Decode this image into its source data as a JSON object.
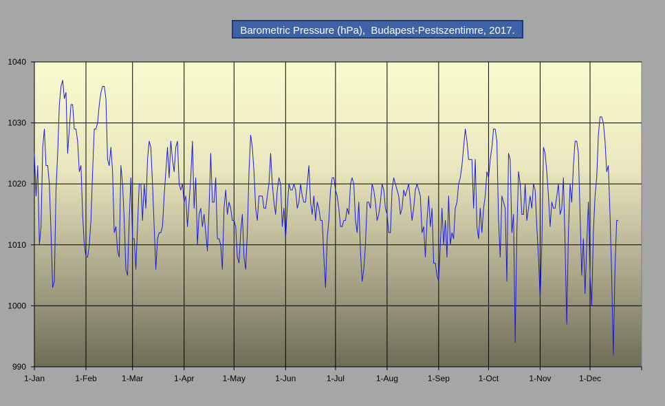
{
  "chart_data": {
    "type": "line",
    "title": "Barometric Pressure (hPa),  Budapest-Pestszentimre, 2017.",
    "xlabel": "",
    "ylabel": "",
    "ylim": [
      990,
      1040
    ],
    "yticks": [
      "990",
      "1000",
      "1010",
      "1020",
      "1030",
      "1040"
    ],
    "xticks": [
      "1-Jan",
      "1-Feb",
      "1-Mar",
      "1-Apr",
      "1-May",
      "1-Jun",
      "1-Jul",
      "1-Aug",
      "1-Sep",
      "1-Oct",
      "1-Nov",
      "1-Dec"
    ],
    "xtick_days": [
      0,
      31,
      59,
      90,
      120,
      151,
      181,
      212,
      243,
      273,
      304,
      334
    ],
    "x_days_total": 365,
    "grid": true,
    "line_color": "#1a1adb",
    "series": [
      {
        "values": [
          1025,
          1018,
          1023,
          1010,
          1013,
          1026,
          1029,
          1023,
          1023,
          1020,
          1012,
          1003,
          1004,
          1019,
          1025,
          1033,
          1036,
          1037,
          1034,
          1035,
          1025,
          1029,
          1033,
          1033,
          1029,
          1029,
          1027,
          1022,
          1023,
          1015,
          1010,
          1008,
          1008,
          1010,
          1014,
          1022,
          1029,
          1029,
          1030,
          1033,
          1035,
          1036,
          1036,
          1034,
          1024,
          1023,
          1026,
          1022,
          1012,
          1013,
          1009,
          1008,
          1023,
          1020,
          1014,
          1006,
          1005,
          1014,
          1021,
          1011,
          1011,
          1006,
          1013,
          1020,
          1020,
          1014,
          1020,
          1016,
          1024,
          1027,
          1026,
          1020,
          1013,
          1006,
          1011,
          1012,
          1012,
          1013,
          1018,
          1022,
          1026,
          1021,
          1027,
          1024,
          1022,
          1026,
          1027,
          1020,
          1019,
          1020,
          1017,
          1018,
          1013,
          1017,
          1021,
          1027,
          1016,
          1021,
          1010,
          1015,
          1016,
          1013,
          1015,
          1012,
          1009,
          1016,
          1025,
          1017,
          1017,
          1021,
          1011,
          1011,
          1010,
          1006,
          1016,
          1019,
          1015,
          1017,
          1016,
          1014,
          1014,
          1013,
          1008,
          1007,
          1012,
          1015,
          1008,
          1006,
          1012,
          1022,
          1028,
          1026,
          1022,
          1016,
          1014,
          1018,
          1018,
          1018,
          1016,
          1016,
          1018,
          1020,
          1025,
          1020,
          1017,
          1015,
          1019,
          1021,
          1020,
          1013,
          1016,
          1011,
          1016,
          1020,
          1019,
          1019,
          1020,
          1019,
          1016,
          1017,
          1020,
          1018,
          1017,
          1017,
          1020,
          1023,
          1017,
          1015,
          1018,
          1014,
          1017,
          1016,
          1014,
          1014,
          1008,
          1003,
          1011,
          1014,
          1019,
          1021,
          1021,
          1019,
          1018,
          1016,
          1013,
          1013,
          1014,
          1014,
          1016,
          1015,
          1020,
          1021,
          1020,
          1014,
          1012,
          1017,
          1009,
          1004,
          1006,
          1010,
          1017,
          1017,
          1016,
          1020,
          1019,
          1017,
          1014,
          1015,
          1017,
          1020,
          1019,
          1016,
          1015,
          1012,
          1012,
          1019,
          1021,
          1020,
          1019,
          1018,
          1015,
          1016,
          1019,
          1018,
          1019,
          1020,
          1017,
          1014,
          1016,
          1019,
          1020,
          1019,
          1018,
          1012,
          1013,
          1008,
          1014,
          1018,
          1013,
          1016,
          1007,
          1007,
          1005,
          1004,
          1010,
          1016,
          1010,
          1014,
          1008,
          1018,
          1010,
          1012,
          1011,
          1016,
          1017,
          1020,
          1021,
          1023,
          1026,
          1029,
          1027,
          1024,
          1024,
          1024,
          1016,
          1024,
          1013,
          1011,
          1016,
          1012,
          1016,
          1018,
          1022,
          1021,
          1024,
          1026,
          1029,
          1029,
          1027,
          1014,
          1008,
          1018,
          1017,
          1016,
          1004,
          1025,
          1024,
          1012,
          1015,
          994,
          1012,
          1022,
          1020,
          1015,
          1015,
          1020,
          1014,
          1016,
          1018,
          1016,
          1020,
          1019,
          1013,
          1008,
          1001,
          1010,
          1026,
          1025,
          1022,
          1018,
          1013,
          1017,
          1016,
          1016,
          1018,
          1020,
          1015,
          1016,
          1021,
          1010,
          997,
          1012,
          1020,
          1017,
          1023,
          1027,
          1027,
          1025,
          1015,
          1005,
          1011,
          1002,
          1010,
          1017,
          1005,
          1000,
          1012,
          1018,
          1021,
          1028,
          1031,
          1031,
          1030,
          1027,
          1022,
          1023,
          1015,
          1005,
          992,
          1006,
          1014,
          1014
        ]
      }
    ]
  }
}
